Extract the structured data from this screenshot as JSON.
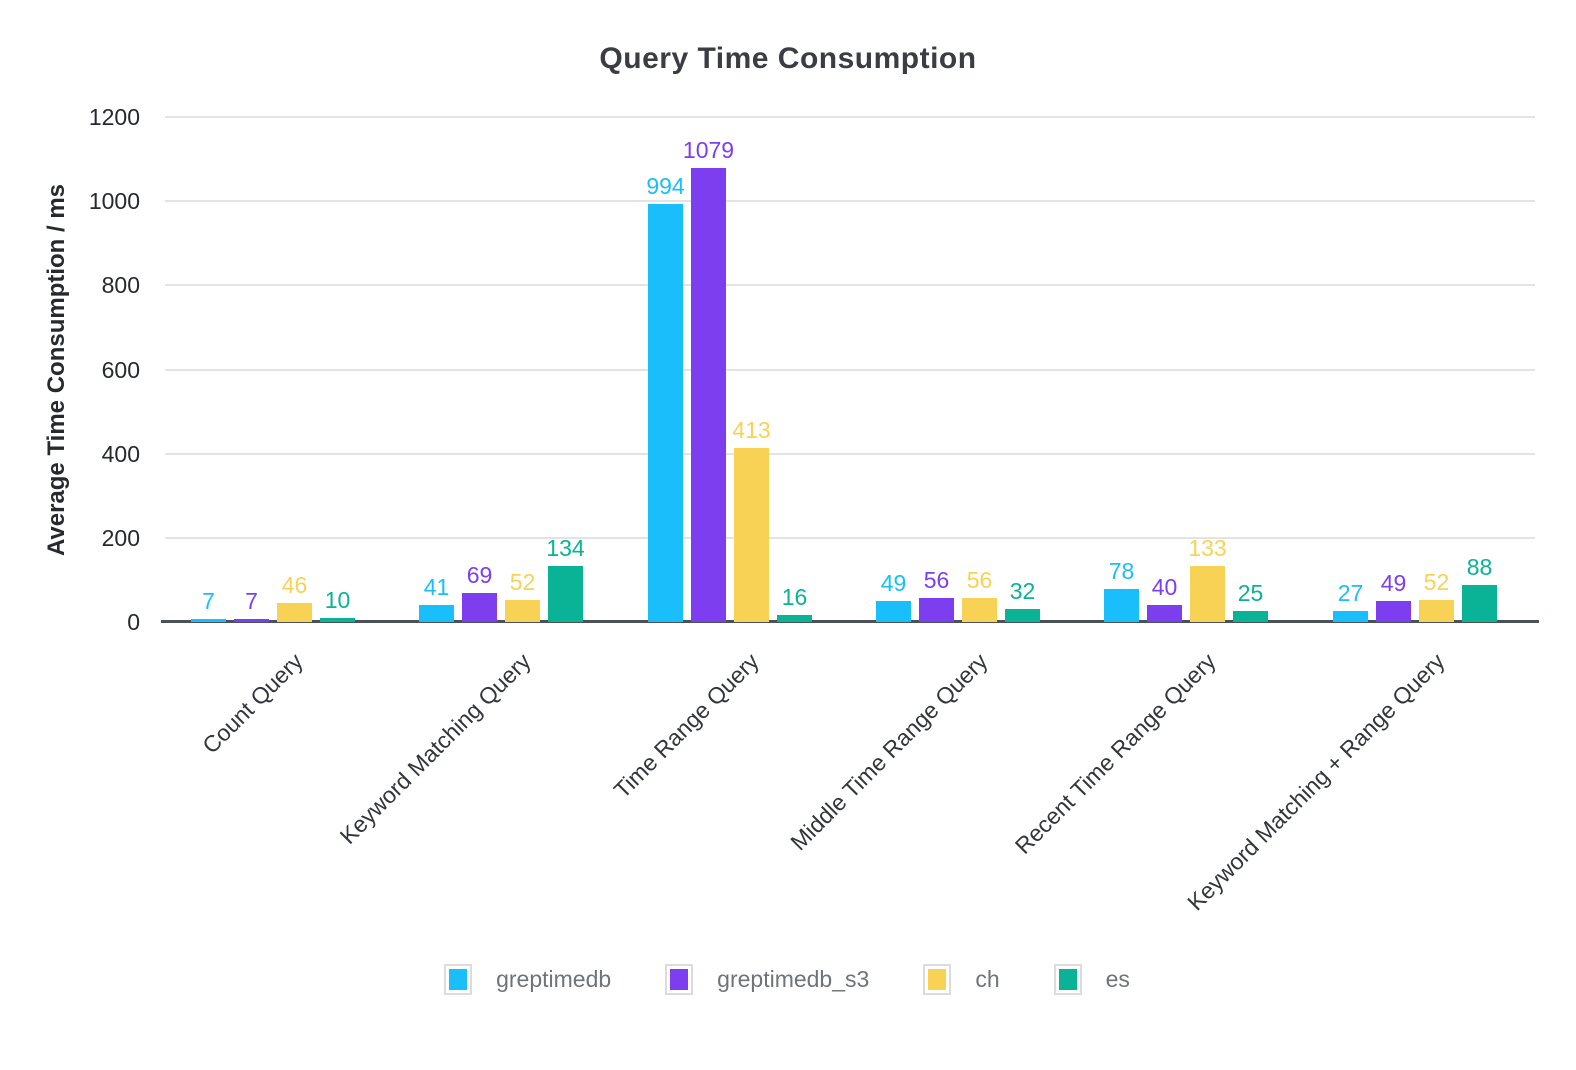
{
  "chart_data": {
    "type": "bar",
    "title": "Query Time Consumption",
    "xlabel": "",
    "ylabel": "Average Time Consumption / ms",
    "ylim": [
      0,
      1200
    ],
    "yticks": [
      0,
      200,
      400,
      600,
      800,
      1000,
      1200
    ],
    "grid": true,
    "legend_position": "bottom",
    "categories": [
      "Count Query",
      "Keyword Matching Query",
      "Time Range Query",
      "Middle Time Range Query",
      "Recent Time Range Query",
      "Keyword Matching + Range Query"
    ],
    "series": [
      {
        "name": "greptimedb",
        "color": "#19BEFA",
        "values": [
          7,
          41,
          994,
          49,
          78,
          27
        ]
      },
      {
        "name": "greptimedb_s3",
        "color": "#7D3EF0",
        "values": [
          7,
          69,
          1079,
          56,
          40,
          49
        ]
      },
      {
        "name": "ch",
        "color": "#F8D255",
        "values": [
          46,
          52,
          413,
          56,
          133,
          52
        ]
      },
      {
        "name": "es",
        "color": "#0AB296",
        "values": [
          10,
          134,
          16,
          32,
          25,
          88
        ]
      }
    ]
  },
  "colors": {
    "background": "#FFFFFF",
    "title_text": "#3A3E44",
    "axis_line": "#4B5158",
    "grid_line": "#E3E3E3",
    "tick_text": "#26292E",
    "category_text": "#32363C",
    "legend_text": "#6E7479",
    "legend_swatch_border": "#DCDCDC"
  }
}
